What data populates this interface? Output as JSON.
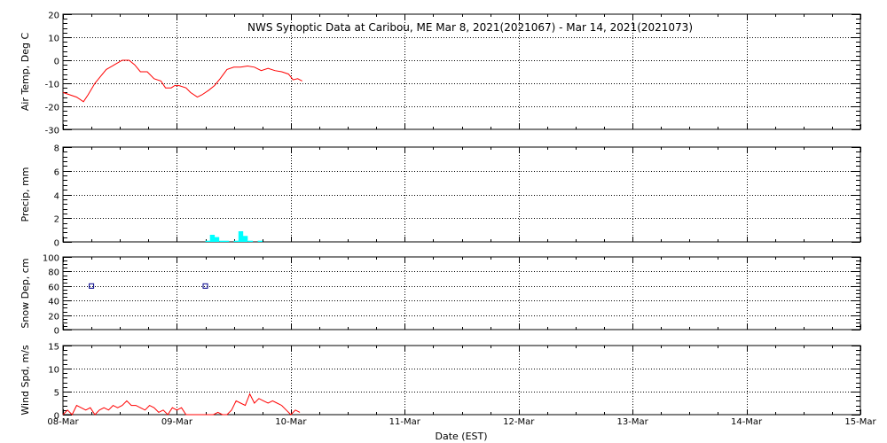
{
  "title": "NWS Synoptic Data at Caribou, ME   Mar  8, 2021(2021067) - Mar 14, 2021(2021073)",
  "xlabel": "Date (EST)",
  "x_ticks": [
    "08-Mar",
    "09-Mar",
    "10-Mar",
    "11-Mar",
    "12-Mar",
    "13-Mar",
    "14-Mar",
    "15-Mar"
  ],
  "colors": {
    "temp": "#ff0000",
    "precip": "#00ffff",
    "snow": "#00008b",
    "wind": "#ff0000"
  },
  "chart_data": [
    {
      "type": "line",
      "ylabel": "Air Temp, Deg C",
      "ylim": [
        -30,
        20
      ],
      "yticks": [
        20,
        10,
        0,
        -10,
        -20,
        -30
      ],
      "xlim": [
        0,
        7
      ],
      "x_units": "days since 08-Mar 00:00 EST",
      "grid": true,
      "series": [
        {
          "x": [
            0,
            0.06,
            0.12,
            0.18,
            0.22,
            0.28,
            0.33,
            0.38,
            0.45,
            0.52,
            0.58,
            0.63,
            0.68,
            0.74,
            0.8,
            0.86,
            0.9,
            0.95,
            0.98,
            1.02,
            1.08,
            1.12,
            1.18,
            1.22,
            1.28,
            1.33,
            1.38,
            1.44,
            1.5,
            1.56,
            1.62,
            1.68,
            1.74,
            1.8,
            1.86,
            1.92,
            1.98,
            2.02,
            2.06,
            2.1
          ],
          "y": [
            -14,
            -15,
            -16,
            -18,
            -15,
            -10,
            -7,
            -4,
            -2,
            0,
            0,
            -2,
            -5,
            -5,
            -8,
            -9,
            -12,
            -12,
            -11,
            -11,
            -12,
            -14,
            -16,
            -15,
            -13,
            -11,
            -8,
            -4,
            -3,
            -3,
            -2.5,
            -3,
            -4.5,
            -3.5,
            -4.5,
            -5,
            -6,
            -8.5,
            -8,
            -9
          ]
        }
      ]
    },
    {
      "type": "bar",
      "ylabel": "Precip, mm",
      "ylim": [
        0,
        8
      ],
      "yticks": [
        8,
        6,
        4,
        2,
        0
      ],
      "xlim": [
        0,
        7
      ],
      "grid": true,
      "bar_width": 0.042,
      "series": [
        {
          "x": [
            1.25,
            1.29,
            1.33,
            1.375,
            1.417,
            1.5,
            1.54,
            1.58,
            1.625,
            1.67,
            1.71
          ],
          "y": [
            0.1,
            0.6,
            0.4,
            0.1,
            0.1,
            0.1,
            0.9,
            0.5,
            0.1,
            0.0,
            0.1
          ]
        }
      ]
    },
    {
      "type": "scatter",
      "ylabel": "Snow Dep, cm",
      "ylim": [
        0,
        100
      ],
      "yticks": [
        100,
        80,
        60,
        40,
        20,
        0
      ],
      "xlim": [
        0,
        7
      ],
      "grid": true,
      "series": [
        {
          "x": [
            0.25,
            1.25
          ],
          "y": [
            60,
            60
          ]
        }
      ]
    },
    {
      "type": "line",
      "ylabel": "Wind Spd, m/s",
      "ylim": [
        0,
        15
      ],
      "yticks": [
        15,
        10,
        5,
        0
      ],
      "xlim": [
        0,
        7
      ],
      "grid": true,
      "series": [
        {
          "x": [
            0,
            0.04,
            0.08,
            0.12,
            0.16,
            0.2,
            0.24,
            0.28,
            0.32,
            0.36,
            0.4,
            0.44,
            0.48,
            0.52,
            0.56,
            0.6,
            0.64,
            0.68,
            0.72,
            0.76,
            0.8,
            0.84,
            0.88,
            0.92,
            0.96,
            1.0,
            1.04,
            1.08,
            1.12,
            1.16,
            1.2,
            1.24,
            1.28,
            1.32,
            1.36,
            1.4,
            1.44,
            1.48,
            1.52,
            1.56,
            1.6,
            1.64,
            1.68,
            1.72,
            1.76,
            1.8,
            1.84,
            1.88,
            1.92,
            1.96,
            2.0,
            2.04,
            2.08
          ],
          "y": [
            0,
            1,
            0,
            2,
            1.5,
            1,
            1.5,
            0,
            1,
            1.5,
            1,
            2,
            1.5,
            2,
            3,
            2,
            2,
            1.5,
            1,
            2,
            1.5,
            0.5,
            1,
            0,
            1.5,
            1,
            1.5,
            0,
            0,
            0,
            0,
            0,
            0,
            0,
            0.5,
            0,
            0,
            1,
            3,
            2.5,
            2,
            4.5,
            2.5,
            3.5,
            3,
            2.5,
            3,
            2.5,
            2,
            1,
            0,
            1,
            0.5
          ]
        }
      ]
    }
  ]
}
